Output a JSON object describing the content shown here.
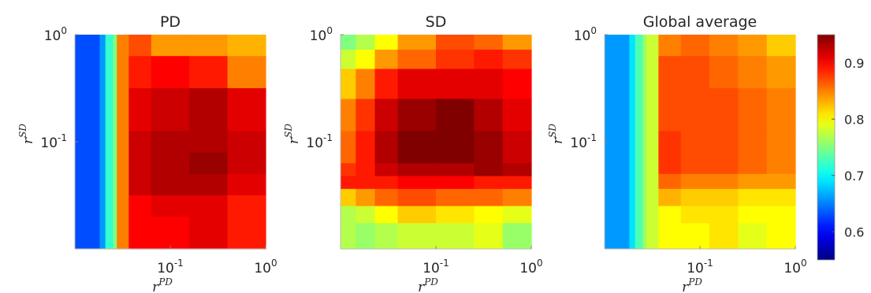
{
  "chart_data": [
    {
      "type": "heatmap",
      "title": "PD",
      "xlabel": {
        "base": "r",
        "sup": "PD"
      },
      "ylabel": {
        "base": "r",
        "sup": "SD"
      },
      "xscale": "log",
      "yscale": "log",
      "xlim": [
        0.01,
        1
      ],
      "ylim": [
        0.01,
        1
      ],
      "xticks": [
        {
          "base": "10",
          "exp": "-1"
        },
        {
          "base": "10",
          "exp": "0"
        }
      ],
      "yticks": [
        {
          "base": "10",
          "exp": "-1"
        },
        {
          "base": "10",
          "exp": "0"
        }
      ],
      "x_boundaries": [
        0.0,
        0.13,
        0.16,
        0.2,
        0.22,
        0.28,
        0.4,
        0.6,
        0.8,
        1.0
      ],
      "y_boundaries": [
        0.0,
        0.1,
        0.25,
        0.45,
        0.55,
        0.65,
        0.75,
        0.85,
        1.0
      ],
      "values": [
        [
          0.88,
          0.88,
          0.88,
          0.89,
          0.88,
          0.87,
          0.84,
          0.84,
          0.83,
          0.82
        ],
        [
          0.85,
          0.86,
          0.86,
          0.87,
          0.88,
          0.89,
          0.9,
          0.89,
          0.85,
          0.84
        ],
        [
          0.84,
          0.85,
          0.86,
          0.88,
          0.89,
          0.91,
          0.92,
          0.93,
          0.91,
          0.86
        ],
        [
          0.83,
          0.84,
          0.86,
          0.88,
          0.91,
          0.92,
          0.93,
          0.93,
          0.92,
          0.88
        ],
        [
          0.83,
          0.85,
          0.87,
          0.89,
          0.91,
          0.92,
          0.93,
          0.94,
          0.92,
          0.89
        ],
        [
          0.82,
          0.84,
          0.86,
          0.88,
          0.9,
          0.92,
          0.93,
          0.93,
          0.91,
          0.88
        ],
        [
          0.8,
          0.82,
          0.84,
          0.87,
          0.89,
          0.9,
          0.91,
          0.91,
          0.89,
          0.86
        ],
        [
          0.76,
          0.8,
          0.84,
          0.88,
          0.89,
          0.9,
          0.9,
          0.91,
          0.89,
          0.86
        ],
        [
          0.74,
          0.78,
          0.82,
          0.88,
          0.87,
          0.88,
          0.89,
          0.88,
          0.86,
          0.84
        ]
      ],
      "columns_left": [
        0.63,
        0.66,
        0.72,
        0.75,
        0.85
      ]
    },
    {
      "type": "heatmap",
      "title": "SD",
      "xlabel": {
        "base": "r",
        "sup": "PD"
      },
      "ylabel": {
        "base": "r",
        "sup": "SD"
      },
      "xscale": "log",
      "yscale": "log",
      "xlim": [
        0.01,
        1
      ],
      "ylim": [
        0.01,
        1
      ],
      "xticks": [
        {
          "base": "10",
          "exp": "-1"
        },
        {
          "base": "10",
          "exp": "0"
        }
      ],
      "yticks": [
        {
          "base": "10",
          "exp": "-1"
        },
        {
          "base": "10",
          "exp": "0"
        }
      ],
      "x_boundaries": [
        0.0,
        0.08,
        0.18,
        0.3,
        0.5,
        0.7,
        0.85,
        1.0
      ],
      "y_boundaries": [
        0.0,
        0.07,
        0.16,
        0.3,
        0.45,
        0.6,
        0.66,
        0.72,
        0.8,
        0.88,
        1.0
      ],
      "values": [
        [
          0.75,
          0.77,
          0.8,
          0.84,
          0.87,
          0.86,
          0.84,
          0.82
        ],
        [
          0.78,
          0.8,
          0.84,
          0.86,
          0.88,
          0.89,
          0.88,
          0.86
        ],
        [
          0.82,
          0.85,
          0.89,
          0.91,
          0.91,
          0.91,
          0.9,
          0.89
        ],
        [
          0.85,
          0.88,
          0.92,
          0.94,
          0.95,
          0.93,
          0.91,
          0.9
        ],
        [
          0.86,
          0.89,
          0.93,
          0.95,
          0.95,
          0.94,
          0.92,
          0.91
        ],
        [
          0.88,
          0.89,
          0.92,
          0.93,
          0.93,
          0.94,
          0.93,
          0.91
        ],
        [
          0.89,
          0.89,
          0.89,
          0.9,
          0.9,
          0.89,
          0.89,
          0.89
        ],
        [
          0.82,
          0.84,
          0.86,
          0.87,
          0.86,
          0.86,
          0.85,
          0.85
        ],
        [
          0.77,
          0.78,
          0.8,
          0.82,
          0.81,
          0.8,
          0.79,
          0.8
        ],
        [
          0.76,
          0.76,
          0.77,
          0.78,
          0.78,
          0.79,
          0.76,
          0.78
        ]
      ],
      "rows_bottom": [
        0.77,
        0.76,
        0.77,
        0.78,
        0.78,
        0.79,
        0.76,
        0.78
      ]
    },
    {
      "type": "heatmap",
      "title": "Global average",
      "xlabel": {
        "base": "r",
        "sup": "PD"
      },
      "ylabel": {
        "base": "r",
        "sup": "SD"
      },
      "xscale": "log",
      "yscale": "log",
      "xlim": [
        0.01,
        1
      ],
      "ylim": [
        0.01,
        1
      ],
      "xticks": [
        {
          "base": "10",
          "exp": "-1"
        },
        {
          "base": "10",
          "exp": "0"
        }
      ],
      "yticks": [
        {
          "base": "10",
          "exp": "-1"
        },
        {
          "base": "10",
          "exp": "0"
        }
      ],
      "x_boundaries": [
        0.0,
        0.14,
        0.2,
        0.28,
        0.4,
        0.55,
        0.7,
        0.85,
        1.0
      ],
      "y_boundaries": [
        0.0,
        0.1,
        0.25,
        0.45,
        0.65,
        0.72,
        0.8,
        0.88,
        1.0
      ],
      "values": [
        [
          0.82,
          0.83,
          0.84,
          0.85,
          0.86,
          0.85,
          0.84,
          0.82
        ],
        [
          0.84,
          0.85,
          0.86,
          0.87,
          0.87,
          0.86,
          0.85,
          0.84
        ],
        [
          0.85,
          0.86,
          0.87,
          0.87,
          0.87,
          0.87,
          0.86,
          0.85
        ],
        [
          0.86,
          0.87,
          0.88,
          0.88,
          0.87,
          0.87,
          0.86,
          0.85
        ],
        [
          0.86,
          0.86,
          0.86,
          0.86,
          0.85,
          0.85,
          0.84,
          0.84
        ],
        [
          0.82,
          0.82,
          0.82,
          0.83,
          0.82,
          0.82,
          0.81,
          0.81
        ],
        [
          0.79,
          0.8,
          0.8,
          0.8,
          0.81,
          0.81,
          0.8,
          0.8
        ],
        [
          0.79,
          0.79,
          0.79,
          0.8,
          0.8,
          0.81,
          0.79,
          0.8
        ]
      ],
      "columns_left": [
        0.66,
        0.69,
        0.73,
        0.76,
        0.78
      ]
    }
  ],
  "colorbar": {
    "colormap": "jet",
    "range": [
      0.55,
      0.95
    ],
    "ticks": [
      0.6,
      0.7,
      0.8,
      0.9
    ],
    "tick_labels": [
      "0.6",
      "0.7",
      "0.8",
      "0.9"
    ]
  }
}
